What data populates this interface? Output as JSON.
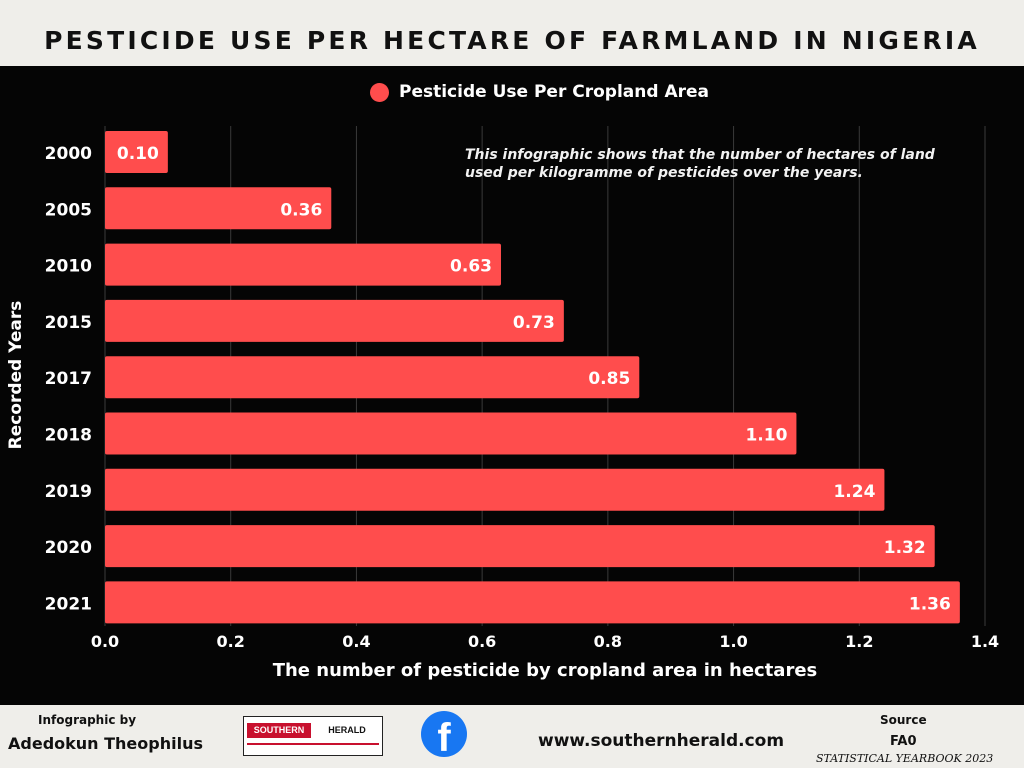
{
  "header": {
    "title": "PESTICIDE USE PER HECTARE OF FARMLAND IN NIGERIA"
  },
  "chart_data": {
    "type": "bar",
    "orientation": "horizontal",
    "categories": [
      "2000",
      "2005",
      "2010",
      "2015",
      "2017",
      "2018",
      "2019",
      "2020",
      "2021"
    ],
    "series": [
      {
        "name": "Pesticide Use Per Cropland Area",
        "values": [
          0.1,
          0.36,
          0.63,
          0.73,
          0.85,
          1.1,
          1.24,
          1.32,
          1.36
        ]
      }
    ],
    "value_labels": [
      "0.10",
      "0.36",
      "0.63",
      "0.73",
      "0.85",
      "1.10",
      "1.24",
      "1.32",
      "1.36"
    ],
    "xlim": [
      0,
      1.4
    ],
    "x_ticks": [
      0.0,
      0.2,
      0.4,
      0.6,
      0.8,
      1.0,
      1.2,
      1.4
    ],
    "x_tick_labels": [
      "0.0",
      "0.2",
      "0.4",
      "0.6",
      "0.8",
      "1.0",
      "1.2",
      "1.4"
    ],
    "xlabel": "The number of pesticide by cropland area in hectares",
    "ylabel": "Recorded Years",
    "legend_position": "top-center",
    "grid": "vertical",
    "bar_color": "#ff4d4d",
    "annotation": "This infographic shows that the number of hectares of land used per kilogramme of pesticides over the years."
  },
  "footer": {
    "credit_caption": "Infographic by",
    "credit_name": "Adedokun Theophilus",
    "logo_left": "SOUTHERN",
    "logo_right": "HERALD",
    "website": "www.southernherald.com",
    "source_caption": "Source",
    "source_name": "FA0",
    "source_detail": "STATISTICAL YEARBOOK 2023",
    "social_icon": "facebook-icon"
  }
}
